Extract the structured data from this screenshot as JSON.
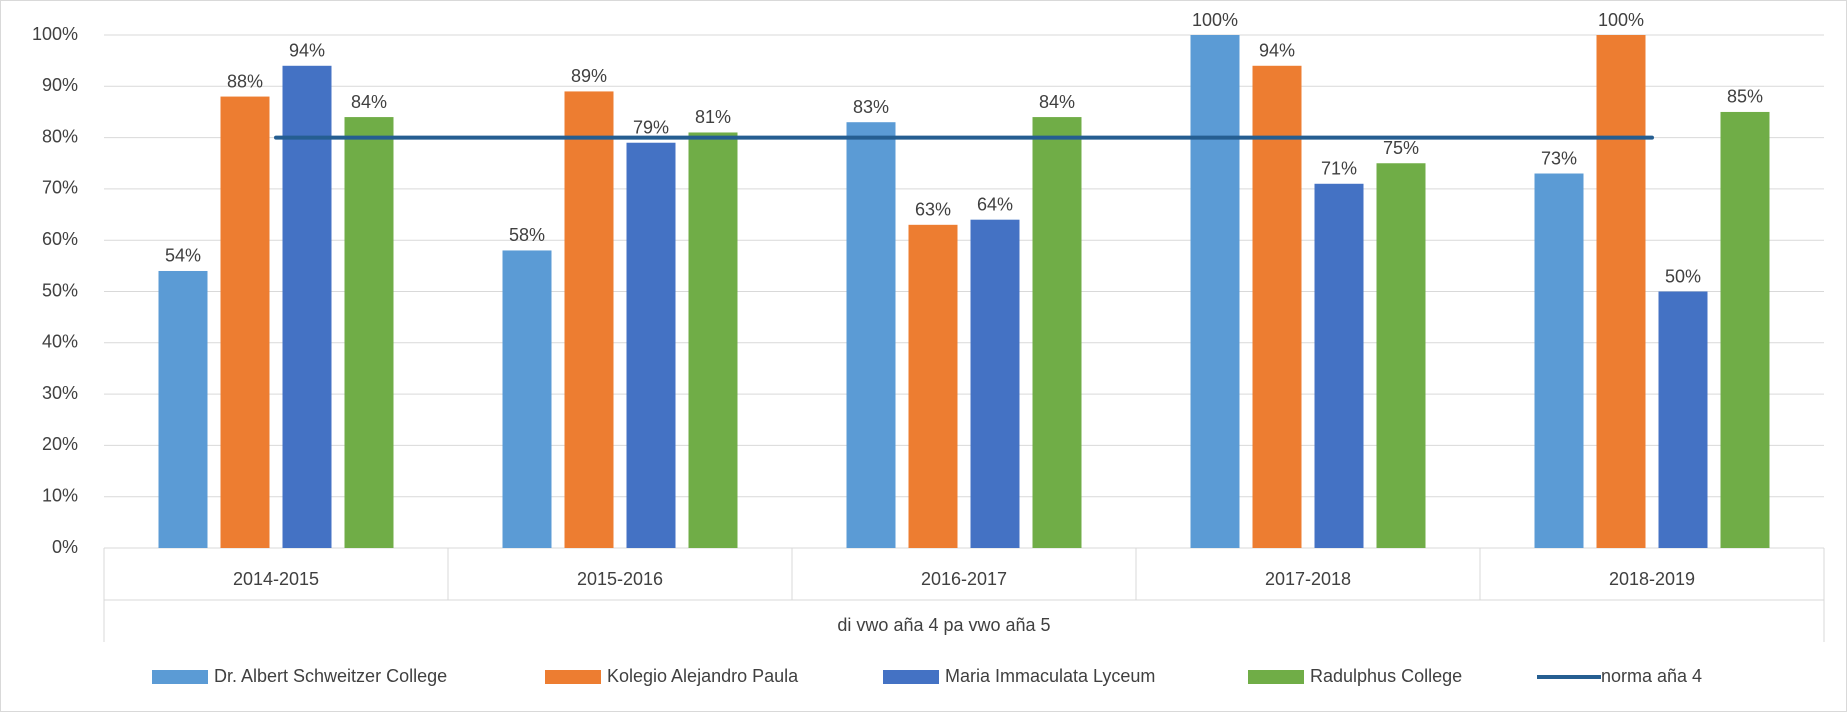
{
  "chart_data": {
    "type": "bar",
    "categories": [
      "2014-2015",
      "2015-2016",
      "2016-2017",
      "2017-2018",
      "2018-2019"
    ],
    "x_group_label": "di vwo aña 4 pa vwo aña 5",
    "ylim": [
      0,
      100
    ],
    "yticks": [
      {
        "value": 0,
        "label": "0%"
      },
      {
        "value": 10,
        "label": "10%"
      },
      {
        "value": 20,
        "label": "20%"
      },
      {
        "value": 30,
        "label": "30%"
      },
      {
        "value": 40,
        "label": "40%"
      },
      {
        "value": 50,
        "label": "50%"
      },
      {
        "value": 60,
        "label": "60%"
      },
      {
        "value": 70,
        "label": "70%"
      },
      {
        "value": 80,
        "label": "80%"
      },
      {
        "value": 90,
        "label": "90%"
      },
      {
        "value": 100,
        "label": "100%"
      }
    ],
    "grid": true,
    "legend": "bottom",
    "series": [
      {
        "name": "Dr. Albert Schweitzer College",
        "type": "bar",
        "color": "#5b9bd5",
        "values": [
          54,
          58,
          83,
          100,
          73
        ],
        "value_labels": [
          "54%",
          "58%",
          "83%",
          "100%",
          "73%"
        ]
      },
      {
        "name": "Kolegio Alejandro Paula",
        "type": "bar",
        "color": "#ed7d31",
        "values": [
          88,
          89,
          63,
          94,
          100
        ],
        "value_labels": [
          "88%",
          "89%",
          "63%",
          "94%",
          "100%"
        ]
      },
      {
        "name": "Maria Immaculata Lyceum",
        "type": "bar",
        "color": "#4472c4",
        "values": [
          94,
          79,
          64,
          71,
          50
        ],
        "value_labels": [
          "94%",
          "79%",
          "64%",
          "71%",
          "50%"
        ]
      },
      {
        "name": "Radulphus College",
        "type": "bar",
        "color": "#70ad47",
        "values": [
          84,
          81,
          84,
          75,
          85
        ],
        "value_labels": [
          "84%",
          "81%",
          "84%",
          "75%",
          "85%"
        ]
      },
      {
        "name": "norma aña 4",
        "type": "line",
        "color": "#255e91",
        "values": [
          80,
          80,
          80,
          80,
          80
        ]
      }
    ]
  }
}
